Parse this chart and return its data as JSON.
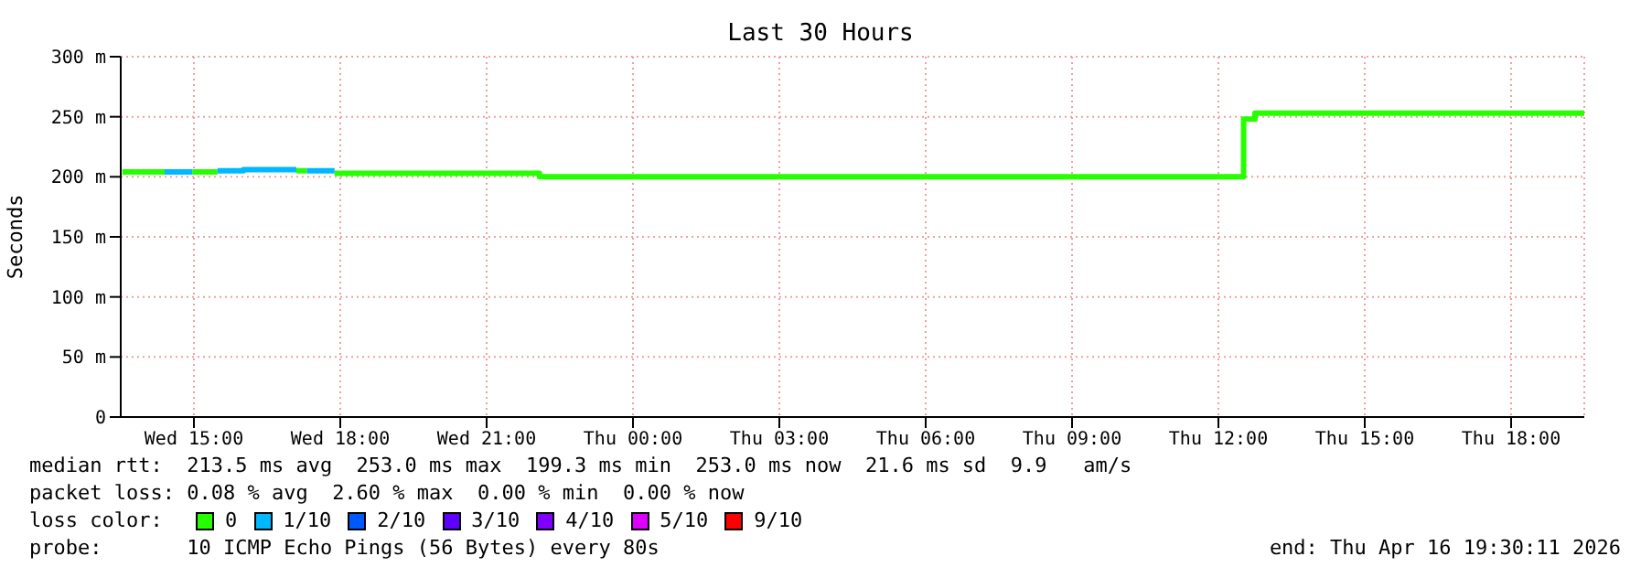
{
  "chart_data": {
    "type": "step",
    "title": "Last 30 Hours",
    "ylabel": "Seconds",
    "legend_title": "loss color:",
    "legend": "bottom",
    "grid": true,
    "marker": "none",
    "xlim": [
      "2026-04-15T13:30",
      "2026-04-16T19:30"
    ],
    "xticks": [
      {
        "value": "2026-04-15T15:00",
        "label": "Wed 15:00"
      },
      {
        "value": "2026-04-15T18:00",
        "label": "Wed 18:00"
      },
      {
        "value": "2026-04-15T21:00",
        "label": "Wed 21:00"
      },
      {
        "value": "2026-04-16T00:00",
        "label": "Thu 00:00"
      },
      {
        "value": "2026-04-16T03:00",
        "label": "Thu 03:00"
      },
      {
        "value": "2026-04-16T06:00",
        "label": "Thu 06:00"
      },
      {
        "value": "2026-04-16T09:00",
        "label": "Thu 09:00"
      },
      {
        "value": "2026-04-16T12:00",
        "label": "Thu 12:00"
      },
      {
        "value": "2026-04-16T15:00",
        "label": "Thu 15:00"
      },
      {
        "value": "2026-04-16T18:00",
        "label": "Thu 18:00"
      }
    ],
    "ylim": [
      0,
      300
    ],
    "yticks": [
      0,
      {
        "value": 50,
        "label": "50 m"
      },
      {
        "value": 100,
        "label": "100 m"
      },
      {
        "value": 150,
        "label": "150 m"
      },
      {
        "value": 200,
        "label": "200 m"
      },
      {
        "value": 250,
        "label": "250 m"
      },
      {
        "value": 300,
        "label": "300 m"
      }
    ],
    "series": [
      {
        "name": "0",
        "color": "#26ff00",
        "x": [
          "2026-04-15T13:32",
          "2026-04-15T14:24",
          "2026-04-15T14:30",
          "2026-04-15T14:58",
          "2026-04-15T15:29",
          "2026-04-15T15:36",
          "2026-04-15T17:06",
          "2026-04-15T17:19",
          "2026-04-15T17:30",
          "2026-04-15T17:53",
          "2026-04-15T22:05",
          "2026-04-16T12:31",
          "2026-04-16T12:45",
          "2026-04-16T19:30"
        ],
        "values": [
          204,
          204,
          null,
          204,
          204,
          null,
          205,
          205,
          null,
          203,
          200,
          248,
          253,
          253
        ]
      },
      {
        "name": "1/10",
        "color": "#00b8ff",
        "x": [
          "2026-04-15T14:24",
          "2026-04-15T14:58",
          "2026-04-15T15:00",
          "2026-04-15T15:29",
          "2026-04-15T16:01",
          "2026-04-15T17:06",
          "2026-04-15T17:12",
          "2026-04-15T17:19",
          "2026-04-15T17:53"
        ],
        "values": [
          204,
          204,
          null,
          205,
          206,
          206,
          null,
          205,
          205
        ]
      },
      {
        "name": "2/10",
        "color": "#0059ff"
      },
      {
        "name": "3/10",
        "color": "#5e00ff"
      },
      {
        "name": "4/10",
        "color": "#7e00ff"
      },
      {
        "name": "5/10",
        "color": "#dd00ff"
      },
      {
        "name": "9/10",
        "color": "#ff0000"
      }
    ],
    "annotations": [
      "median rtt:  213.5 ms avg  253.0 ms max  199.3 ms min  253.0 ms now  21.6 ms sd  9.9   am/s",
      "packet loss: 0.08 % avg  2.60 % max  0.00 % min  0.00 % now",
      "probe:       10 ICMP Echo Pings (56 Bytes) every 80s",
      "end: Thu Apr 16 19:30:11 2026"
    ]
  }
}
